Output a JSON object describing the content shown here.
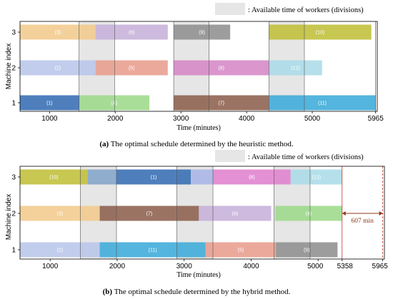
{
  "legend_label": ": Available time of workers (divisions)",
  "legend_color": "#e6e6e6",
  "chart_data": [
    {
      "type": "gantt",
      "caption_tag": "(a)",
      "caption_text": " The optimal schedule determined by the heuristic method.",
      "ylabel": "Machine index",
      "xlabel": "Time (minutes)",
      "xlim": [
        550,
        5990
      ],
      "xticks": [
        1000,
        2000,
        3000,
        4000,
        5000,
        5965
      ],
      "yticks": [
        1,
        2,
        3
      ],
      "worker_periods": [
        [
          1450,
          1990
        ],
        [
          2890,
          3430
        ],
        [
          4340,
          4880
        ]
      ],
      "tasks": [
        {
          "machine": 3,
          "start": 550,
          "end": 1700,
          "label": "(3)",
          "color": "#f2c98a"
        },
        {
          "machine": 3,
          "start": 1700,
          "end": 2800,
          "label": "(6)",
          "color": "#c4aed8"
        },
        {
          "machine": 3,
          "start": 2890,
          "end": 3750,
          "label": "(9)",
          "color": "#8c8c8c"
        },
        {
          "machine": 3,
          "start": 4340,
          "end": 5900,
          "label": "(10)",
          "color": "#bdbd33"
        },
        {
          "machine": 2,
          "start": 550,
          "end": 1700,
          "label": "(2)",
          "color": "#b7c4ea"
        },
        {
          "machine": 2,
          "start": 1700,
          "end": 2800,
          "label": "(5)",
          "color": "#e89a8a"
        },
        {
          "machine": 2,
          "start": 2890,
          "end": 4340,
          "label": "(8)",
          "color": "#d484c4"
        },
        {
          "machine": 2,
          "start": 4340,
          "end": 5150,
          "label": "(12)",
          "color": "#a8dae8"
        },
        {
          "machine": 1,
          "start": 550,
          "end": 1450,
          "label": "(1)",
          "color": "#2f68b0"
        },
        {
          "machine": 1,
          "start": 1450,
          "end": 2520,
          "label": "(4)",
          "color": "#9ad886"
        },
        {
          "machine": 1,
          "start": 2890,
          "end": 4340,
          "label": "(7)",
          "color": "#8a5a48"
        },
        {
          "machine": 1,
          "start": 4340,
          "end": 5965,
          "label": "(11)",
          "color": "#36a8d8"
        }
      ]
    },
    {
      "type": "gantt",
      "caption_tag": "(b)",
      "caption_text": " The optimal schedule determined by the hybrid method.",
      "ylabel": "Machine index",
      "xlabel": "Time (minutes)",
      "xlim": [
        550,
        5990
      ],
      "xticks": [
        1000,
        2000,
        3000,
        4000,
        5000,
        5358,
        5965
      ],
      "yticks": [
        1,
        2,
        3
      ],
      "worker_periods": [
        [
          1450,
          1990
        ],
        [
          2890,
          3430
        ],
        [
          4340,
          4880
        ]
      ],
      "gap_annotation": {
        "from": 5358,
        "to": 5965,
        "text": "607 min",
        "machine": 2
      },
      "tasks": [
        {
          "machine": 3,
          "start": 550,
          "end": 1560,
          "label": "(10)",
          "color": "#bdbd33"
        },
        {
          "machine": 3,
          "start": 1560,
          "end": 1990,
          "label": "",
          "color": "#7fa2c8"
        },
        {
          "machine": 3,
          "start": 1990,
          "end": 3100,
          "label": "(1)",
          "color": "#2f68b0"
        },
        {
          "machine": 3,
          "start": 3100,
          "end": 3430,
          "label": "",
          "color": "#a6b4e6"
        },
        {
          "machine": 3,
          "start": 3430,
          "end": 4590,
          "label": "(8)",
          "color": "#df7ccc"
        },
        {
          "machine": 3,
          "start": 4590,
          "end": 5358,
          "label": "(12)",
          "color": "#a8dae8"
        },
        {
          "machine": 2,
          "start": 550,
          "end": 1740,
          "label": "(3)",
          "color": "#f2c98a"
        },
        {
          "machine": 2,
          "start": 1740,
          "end": 3220,
          "label": "(7)",
          "color": "#8a5a48"
        },
        {
          "machine": 2,
          "start": 3220,
          "end": 4300,
          "label": "(6)",
          "color": "#c4aed8"
        },
        {
          "machine": 2,
          "start": 4360,
          "end": 5358,
          "label": "(4)",
          "color": "#9ad886"
        },
        {
          "machine": 1,
          "start": 550,
          "end": 1740,
          "label": "(2)",
          "color": "#b7c4ea"
        },
        {
          "machine": 1,
          "start": 1740,
          "end": 3320,
          "label": "(11)",
          "color": "#36a8d8"
        },
        {
          "machine": 1,
          "start": 3320,
          "end": 4370,
          "label": "(5)",
          "color": "#e89a8a"
        },
        {
          "machine": 1,
          "start": 4370,
          "end": 5290,
          "label": "(9)",
          "color": "#8c8c8c"
        }
      ]
    }
  ]
}
